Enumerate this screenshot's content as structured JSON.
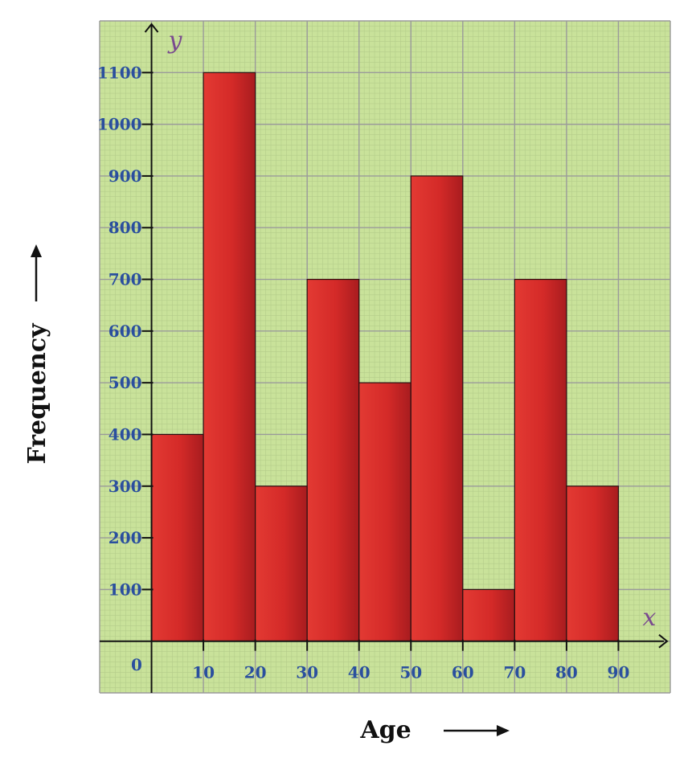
{
  "chart_data": {
    "type": "bar",
    "categories": [
      "0-10",
      "10-20",
      "20-30",
      "30-40",
      "40-50",
      "50-60",
      "60-70",
      "70-80",
      "80-90"
    ],
    "series": [
      {
        "values": [
          400,
          1100,
          300,
          700,
          500,
          900,
          100,
          700,
          300
        ]
      }
    ],
    "xlabel": "Age",
    "ylabel": "Frequency",
    "x_symbol": "x",
    "y_symbol": "y",
    "origin_label": "0",
    "xticks": [
      "10",
      "20",
      "30",
      "40",
      "50",
      "60",
      "70",
      "80",
      "90"
    ],
    "yticks": [
      "100",
      "200",
      "300",
      "400",
      "500",
      "600",
      "700",
      "800",
      "900",
      "1000",
      "1100"
    ],
    "xlim": [
      -10,
      100
    ],
    "ylim": [
      -100,
      1200
    ],
    "grid": true,
    "colors": {
      "bar": "#d42a28",
      "background": "#c9e29a",
      "grid_major": "#9a9a9a",
      "grid_minor": "#b4cc8a",
      "tick_text": "#2a4f9e",
      "axis_symbol": "#7a4a8f"
    }
  }
}
